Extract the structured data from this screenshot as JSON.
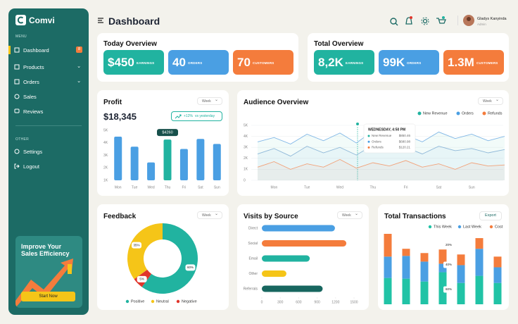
{
  "brand": "Comvi",
  "sidebar": {
    "menu_label": "MENU",
    "items": [
      {
        "label": "Dashboard",
        "badge": "8"
      },
      {
        "label": "Products"
      },
      {
        "label": "Orders"
      },
      {
        "label": "Sales"
      },
      {
        "label": "Reviews"
      }
    ],
    "other_label": "OTHER",
    "other_items": [
      "Settings",
      "Logout"
    ],
    "promo": {
      "title": "Improve Your Sales Efficiency",
      "button": "Start Now"
    }
  },
  "header": {
    "title": "Dashboard",
    "user_name": "Gladys Kanyinda",
    "user_role": "Admin"
  },
  "today_overview": {
    "title": "Today Overview",
    "cards": [
      {
        "value": "$450",
        "label": "EARNINGS"
      },
      {
        "value": "40",
        "label": "ORDERS"
      },
      {
        "value": "70",
        "label": "CUSTOMERS"
      }
    ]
  },
  "total_overview": {
    "title": "Total Overview",
    "cards": [
      {
        "value": "8,2K",
        "label": "EARNINGS"
      },
      {
        "value": "99K",
        "label": "ORDERS"
      },
      {
        "value": "1.3M",
        "label": "CUSTOMERS"
      }
    ]
  },
  "profit": {
    "title": "Profit",
    "filter": "Week",
    "amount": "$18,345",
    "change": "+12%",
    "change_note": "vs yesterday",
    "chart": {
      "type": "bar",
      "categories": [
        "Mon",
        "Tue",
        "Wed",
        "Thu",
        "Fri",
        "Sat",
        "Sun"
      ],
      "values": [
        4490,
        3690,
        2430,
        4260,
        3510,
        4310,
        3910
      ],
      "value_labels": [
        null,
        null,
        null,
        "$4260",
        null,
        null,
        null
      ],
      "colors": [
        "#4a9fe3",
        "#4a9fe3",
        "#4a9fe3",
        "#21b3a0",
        "#4a9fe3",
        "#4a9fe3",
        "#4a9fe3"
      ],
      "ylim": [
        1000,
        5000
      ],
      "yticks": [
        {
          "value": 1000,
          "label": "1K"
        },
        {
          "value": 2000,
          "label": "2K"
        },
        {
          "value": 3000,
          "label": "3K"
        },
        {
          "value": 4000,
          "label": "4K"
        },
        {
          "value": 5000,
          "label": "5K"
        }
      ]
    }
  },
  "audience": {
    "title": "Audience Overview",
    "filter": "Week",
    "chart": {
      "type": "area",
      "categories": [
        null,
        "Mon",
        null,
        "Tue",
        null,
        "Wed",
        null,
        "Thu",
        null,
        "Fri",
        null,
        "Sat",
        null,
        "Sun",
        null,
        null
      ],
      "series": [
        {
          "name": "New Revenue",
          "color": "#21b3a0",
          "line_color": "#7fb6e6",
          "values": [
            3500,
            3900,
            3300,
            4200,
            3600,
            4300,
            3400,
            4500,
            3700,
            4100,
            3500,
            4400,
            3800,
            4200,
            3600,
            4000
          ]
        },
        {
          "name": "Orders",
          "color": "#4a9fe3",
          "line_color": "#8fb8d8",
          "values": [
            2400,
            2900,
            2200,
            3100,
            2500,
            3000,
            2300,
            3200,
            2600,
            3000,
            2400,
            3100,
            2700,
            2900,
            2500,
            2800
          ]
        },
        {
          "name": "Refunds",
          "color": "#f47c3c",
          "line_color": "#f2a27a",
          "values": [
            1200,
            1700,
            1000,
            1500,
            1200,
            1900,
            1100,
            1600,
            1300,
            1800,
            1200,
            1500,
            1000,
            1600,
            1300,
            1400
          ]
        }
      ],
      "ylim": [
        0,
        5000
      ],
      "yticks": [
        0,
        {
          "value": 1000,
          "label": "1K"
        },
        {
          "value": 2000,
          "label": "2K"
        },
        {
          "value": 3000,
          "label": "3K"
        },
        {
          "value": 4000,
          "label": "4K"
        },
        {
          "value": 5000,
          "label": "5K"
        }
      ],
      "grid": true,
      "tooltip": {
        "title": "WEDNESDAY, 4:50 PM",
        "rows": [
          {
            "name": "New Revenue",
            "value": "$850.46"
          },
          {
            "name": "Orders",
            "value": "$680.98"
          },
          {
            "name": "Refunds",
            "value": "$120.21"
          }
        ]
      }
    }
  },
  "feedback": {
    "title": "Feedback",
    "filter": "Week",
    "chart": {
      "type": "donut",
      "categories": [
        "Positive",
        "Neutral",
        "Negative"
      ],
      "values": [
        60,
        35,
        5
      ],
      "value_labels": [
        "60%",
        "35%",
        "5%"
      ],
      "colors": [
        "#21b3a0",
        "#f5c518",
        "#e0352b"
      ],
      "order": [
        0,
        2,
        1
      ]
    }
  },
  "visits": {
    "title": "Visits by Source",
    "filter": "Week",
    "chart": {
      "type": "hbar",
      "categories": [
        "Direct",
        "Social",
        "Email",
        "Other",
        "Referrals"
      ],
      "values": [
        1190,
        1375,
        780,
        400,
        990
      ],
      "colors": [
        "#4a9fe3",
        "#f47c3c",
        "#21b3a0",
        "#f5c518",
        "#17665f"
      ],
      "xlim": [
        0,
        1500
      ],
      "xticks": [
        0,
        300,
        600,
        900,
        1200,
        1500
      ]
    }
  },
  "transactions": {
    "title": "Total Transactions",
    "button": "Export",
    "chart": {
      "type": "stacked_bar",
      "series": [
        {
          "name": "This Week",
          "color": "#21c3a6",
          "values": [
            37,
            36,
            32,
            45,
            30,
            40,
            30
          ]
        },
        {
          "name": "Last Week",
          "color": "#4a9fe3",
          "values": [
            30,
            32,
            28,
            12,
            25,
            38,
            22
          ]
        },
        {
          "name": "Cost",
          "color": "#f47c3c",
          "values": [
            32,
            10,
            12,
            20,
            15,
            15,
            15
          ]
        }
      ],
      "annotations": [
        "20%",
        "40%",
        "60%"
      ]
    }
  }
}
